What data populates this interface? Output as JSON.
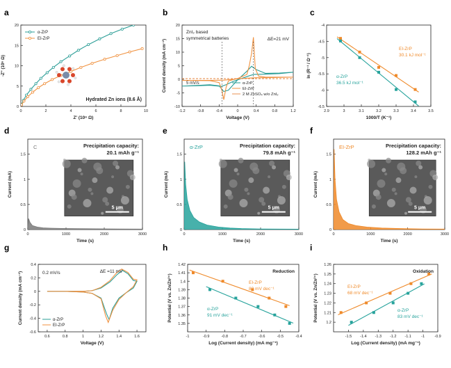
{
  "figure": {
    "colors": {
      "a": "#2a9d96",
      "e": "#f0913f",
      "c": "#2e7fa0",
      "o": "#ea8a3e",
      "gray": "#7a7a7a",
      "orange": "#ef8a2a",
      "teal": "#27a39c",
      "ref": "#e89050"
    },
    "unit_labels": {
      "ohm_small": "Ω",
      "k": "K",
      "sub_ct": "ct"
    }
  },
  "chart_data": [
    {
      "id": "a",
      "panel_label": "a",
      "type": "line",
      "xlabel": "Z' (10⁶ Ω)",
      "ylabel": "-Z'' (10⁶ Ω)",
      "xlim": [
        0,
        10
      ],
      "ylim": [
        0,
        20
      ],
      "xticks": [
        0,
        2,
        4,
        6,
        8,
        10
      ],
      "yticks": [
        0,
        5,
        10,
        15,
        20
      ],
      "annotation": "Hydrated Zn ions (8.6 Å)",
      "series": [
        {
          "name": "α-ZrP",
          "color": "#2a9d96",
          "x": [
            0.05,
            0.2,
            0.45,
            0.8,
            1.2,
            1.6,
            2.1,
            2.6,
            3.2,
            3.9,
            4.6,
            5.4,
            6.3,
            7.2,
            8.1,
            9.0
          ],
          "y": [
            0.5,
            1.5,
            2.8,
            4.2,
            5.6,
            6.9,
            8.3,
            9.6,
            11.0,
            12.4,
            13.8,
            15.2,
            16.6,
            17.9,
            19.0,
            20.0
          ]
        },
        {
          "name": "EI-ZrP",
          "color": "#f0913f",
          "x": [
            0.05,
            0.25,
            0.55,
            0.95,
            1.4,
            1.9,
            2.5,
            3.2,
            4.0,
            4.8,
            5.7,
            6.7,
            7.7,
            8.7,
            9.7
          ],
          "y": [
            0.4,
            1.3,
            2.4,
            3.5,
            4.6,
            5.6,
            6.6,
            7.6,
            8.6,
            9.6,
            10.6,
            11.6,
            12.5,
            13.4,
            14.2
          ]
        }
      ]
    },
    {
      "id": "b",
      "panel_label": "b",
      "type": "line",
      "xlabel": "Voltage (V)",
      "ylabel": "Current density (mA cm⁻²)",
      "xlim": [
        -1.2,
        1.2
      ],
      "ylim": [
        -10,
        20
      ],
      "xticks": [
        -1.2,
        -0.8,
        -0.4,
        0.0,
        0.4,
        0.8,
        1.2
      ],
      "yticks": [
        -10,
        -5,
        0,
        5,
        10,
        15,
        20
      ],
      "title_lines": [
        "ZnI₂ based",
        "symmetrical batteries"
      ],
      "delta_label": "ΔE=21 mV",
      "scan_rate": "5 mV/s",
      "series": [
        {
          "name": "α-ZrP",
          "color": "#2a9d96",
          "x": [
            -1.2,
            -0.9,
            -0.6,
            -0.4,
            -0.3,
            -0.2,
            0.0,
            0.2,
            0.3,
            0.4,
            0.6,
            0.9,
            1.2,
            0.9,
            0.6,
            0.35,
            0.25,
            0.1,
            -0.1,
            -0.25,
            -0.35,
            -0.6,
            -0.9,
            -1.2
          ],
          "y": [
            -2.5,
            -2.3,
            -2.0,
            -2.4,
            -4.5,
            -4.0,
            -0.2,
            3.0,
            4.8,
            3.6,
            2.2,
            2.3,
            2.6,
            2.1,
            1.9,
            1.8,
            1.3,
            0.4,
            -0.8,
            -2.0,
            -2.6,
            -2.2,
            -2.4,
            -2.5
          ]
        },
        {
          "name": "EI-ZrP",
          "color": "#f0913f",
          "x": [
            -1.2,
            -0.6,
            -0.4,
            -0.34,
            -0.3,
            -0.25,
            -0.2,
            0.0,
            0.2,
            0.25,
            0.3,
            0.34,
            0.38,
            0.45,
            0.6,
            1.2,
            0.6,
            0.4,
            0.3,
            0.1,
            -0.1,
            -0.3,
            -0.6,
            -1.2
          ],
          "y": [
            -0.4,
            -0.5,
            -1.2,
            -4.0,
            -7.5,
            -3.0,
            -0.6,
            0.3,
            1.8,
            5.0,
            9.5,
            15.5,
            4.0,
            1.2,
            0.8,
            0.8,
            0.6,
            0.6,
            0.5,
            0.3,
            0.0,
            -0.3,
            -0.4,
            -0.4
          ]
        },
        {
          "name": "2 M ZnSO₄ w/o ZnI₂",
          "color": "#e89050",
          "x": [
            -1.2,
            1.2
          ],
          "y": [
            0.25,
            0.25
          ]
        }
      ]
    },
    {
      "id": "c",
      "panel_label": "c",
      "type": "scatter",
      "xlabel": "1000/T (K⁻¹)",
      "ylabel": "ln (R⁻¹ / Ω⁻¹)",
      "xlim": [
        2.9,
        3.5
      ],
      "ylim": [
        -6.5,
        -4.0
      ],
      "xticks": [
        2.9,
        3.0,
        3.1,
        3.2,
        3.3,
        3.4,
        3.5
      ],
      "yticks": [
        -6.5,
        -6.0,
        -5.5,
        -5.0,
        -4.5,
        -4.0
      ],
      "series": [
        {
          "name": "EI-ZrP",
          "label": "EI-ZrP",
          "energy": "30.1 kJ mol⁻¹",
          "color": "#ef8a2a",
          "x": [
            2.98,
            3.09,
            3.2,
            3.3,
            3.41
          ],
          "y": [
            -4.41,
            -4.83,
            -5.3,
            -5.55,
            -5.98
          ]
        },
        {
          "name": "α-ZrP",
          "label": "α-ZrP",
          "energy": "36.5 kJ mol⁻¹",
          "color": "#27a39c",
          "x": [
            2.98,
            3.09,
            3.2,
            3.3,
            3.41
          ],
          "y": [
            -4.49,
            -5.0,
            -5.45,
            -5.98,
            -6.36
          ]
        }
      ]
    },
    {
      "id": "d",
      "panel_label": "d",
      "type": "area",
      "series_label": "C",
      "xlabel": "Time (s)",
      "ylabel": "Current (mA)",
      "xlim": [
        0,
        3000
      ],
      "ylim": [
        0,
        1.8
      ],
      "xticks": [
        0,
        1000,
        2000,
        3000
      ],
      "yticks": [
        0.0,
        0.5,
        1.0,
        1.5
      ],
      "caption_lines": [
        "Precipitation capacity:",
        "20.1 mAh g⁻¹"
      ],
      "scale_bar": "5 μm",
      "color": "#7a7a7a",
      "x": [
        0,
        20,
        60,
        120,
        250,
        400,
        600,
        900,
        1300,
        1800,
        2400,
        3000
      ],
      "y": [
        0.02,
        0.22,
        0.14,
        0.08,
        0.05,
        0.035,
        0.028,
        0.022,
        0.018,
        0.015,
        0.012,
        0.01
      ]
    },
    {
      "id": "e",
      "panel_label": "e",
      "type": "area",
      "series_label": "α-ZrP",
      "xlabel": "Time (s)",
      "ylabel": "Current (mA)",
      "xlim": [
        0,
        3000
      ],
      "ylim": [
        0,
        1.8
      ],
      "xticks": [
        0,
        1000,
        2000,
        3000
      ],
      "yticks": [
        0.0,
        0.5,
        1.0,
        1.5
      ],
      "caption_lines": [
        "Precipitation capacity:",
        "79.8 mAh g⁻¹"
      ],
      "scale_bar": "5 μm",
      "color": "#27a39c",
      "x": [
        0,
        15,
        40,
        80,
        150,
        250,
        400,
        600,
        900,
        1200,
        1500,
        2000,
        2500,
        3000
      ],
      "y": [
        0.05,
        1.35,
        0.9,
        0.6,
        0.38,
        0.24,
        0.15,
        0.09,
        0.05,
        0.03,
        0.02,
        0.012,
        0.01,
        0.008
      ]
    },
    {
      "id": "f",
      "panel_label": "f",
      "type": "area",
      "series_label": "EI-ZrP",
      "xlabel": "Time (s)",
      "ylabel": "Current (mA)",
      "xlim": [
        0,
        3000
      ],
      "ylim": [
        0,
        1.8
      ],
      "xticks": [
        0,
        1000,
        2000,
        3000
      ],
      "yticks": [
        0.0,
        0.5,
        1.0,
        1.5
      ],
      "caption_lines": [
        "Precipitation capacity:",
        "128.2 mAh g⁻¹"
      ],
      "scale_bar": "5 μm",
      "color": "#ef8a2a",
      "x": [
        0,
        15,
        40,
        80,
        150,
        250,
        400,
        600,
        900,
        1300,
        1800,
        2400,
        3000
      ],
      "y": [
        0.05,
        1.6,
        1.0,
        0.6,
        0.35,
        0.2,
        0.12,
        0.08,
        0.05,
        0.03,
        0.02,
        0.012,
        0.01
      ]
    },
    {
      "id": "g",
      "panel_label": "g",
      "type": "line",
      "xlabel": "Voltage (V)",
      "ylabel": "Current density (mA cm⁻²)",
      "xlim": [
        0.5,
        1.7
      ],
      "ylim": [
        -0.6,
        0.4
      ],
      "xticks": [
        0.6,
        0.8,
        1.0,
        1.2,
        1.4,
        1.6
      ],
      "yticks": [
        -0.6,
        -0.4,
        -0.2,
        0.0,
        0.2,
        0.4
      ],
      "scan_rate": "0.2 mV/s",
      "delta_label": "ΔE =11 mV",
      "series": [
        {
          "name": "α-ZrP",
          "color": "#2a9d96",
          "x": [
            0.6,
            0.8,
            1.0,
            1.1,
            1.2,
            1.3,
            1.38,
            1.44,
            1.5,
            1.56,
            1.6,
            1.56,
            1.48,
            1.4,
            1.33,
            1.29,
            1.26,
            1.2,
            1.1,
            1.0,
            0.8,
            0.6
          ],
          "y": [
            0.0,
            0.0,
            0.0,
            0.01,
            0.05,
            0.14,
            0.25,
            0.31,
            0.26,
            0.16,
            0.15,
            0.05,
            -0.02,
            -0.1,
            -0.25,
            -0.42,
            -0.33,
            -0.1,
            -0.03,
            -0.01,
            0.0,
            0.0
          ]
        },
        {
          "name": "EI-ZrP",
          "color": "#f0913f",
          "x": [
            0.6,
            0.8,
            1.0,
            1.1,
            1.2,
            1.3,
            1.37,
            1.43,
            1.5,
            1.56,
            1.6,
            1.56,
            1.48,
            1.4,
            1.33,
            1.28,
            1.25,
            1.2,
            1.1,
            1.0,
            0.8,
            0.6
          ],
          "y": [
            0.0,
            0.0,
            0.0,
            0.01,
            0.06,
            0.16,
            0.27,
            0.33,
            0.28,
            0.18,
            0.17,
            0.07,
            -0.02,
            -0.12,
            -0.28,
            -0.46,
            -0.36,
            -0.11,
            -0.03,
            -0.01,
            0.0,
            0.0
          ]
        }
      ]
    },
    {
      "id": "h",
      "panel_label": "h",
      "type": "scatter",
      "title": "Reduction",
      "xlabel": "Log (Current density) (mA mg⁻¹)",
      "ylabel": "Potential (V vs. Zn/Zn²⁺)",
      "xlim": [
        -1.0,
        -0.4
      ],
      "ylim": [
        1.34,
        1.42
      ],
      "xticks": [
        -1.0,
        -0.9,
        -0.8,
        -0.7,
        -0.6,
        -0.5,
        -0.4
      ],
      "yticks": [
        1.35,
        1.36,
        1.37,
        1.38,
        1.39,
        1.4,
        1.41,
        1.42
      ],
      "series": [
        {
          "name": "EI-ZrP",
          "label": "EI-ZrP",
          "slope": "80 mV dec⁻¹",
          "color": "#ef8a2a",
          "x": [
            -0.97,
            -0.81,
            -0.65,
            -0.56,
            -0.47
          ],
          "y": [
            1.41,
            1.4,
            1.39,
            1.38,
            1.37
          ]
        },
        {
          "name": "α-ZrP",
          "label": "α-ZrP",
          "slope": "91 mV dec⁻¹",
          "color": "#27a39c",
          "x": [
            -0.88,
            -0.74,
            -0.62,
            -0.53,
            -0.45
          ],
          "y": [
            1.39,
            1.38,
            1.37,
            1.36,
            1.35
          ]
        }
      ]
    },
    {
      "id": "i",
      "panel_label": "i",
      "type": "scatter",
      "title": "Oxidation",
      "xlabel": "Log (Current density) (mA mg⁻¹)",
      "ylabel": "Potential (V vs. Zn/Zn²⁺)",
      "xlim": [
        -1.6,
        -0.9
      ],
      "ylim": [
        1.19,
        1.26
      ],
      "xticks": [
        -1.5,
        -1.4,
        -1.3,
        -1.2,
        -1.1,
        -1.0,
        -0.9
      ],
      "yticks": [
        1.2,
        1.21,
        1.22,
        1.23,
        1.24,
        1.25,
        1.26
      ],
      "series": [
        {
          "name": "EI-ZrP",
          "label": "EI-ZrP",
          "slope": "68 mV dec⁻¹",
          "color": "#ef8a2a",
          "x": [
            -1.55,
            -1.38,
            -1.22,
            -1.08,
            -0.96
          ],
          "y": [
            1.21,
            1.22,
            1.23,
            1.24,
            1.25
          ]
        },
        {
          "name": "α-ZrP",
          "label": "α-ZrP",
          "slope": "83 mV dec⁻¹",
          "color": "#27a39c",
          "x": [
            -1.48,
            -1.33,
            -1.2,
            -1.1,
            -1.01
          ],
          "y": [
            1.2,
            1.21,
            1.22,
            1.23,
            1.24
          ]
        }
      ]
    }
  ]
}
